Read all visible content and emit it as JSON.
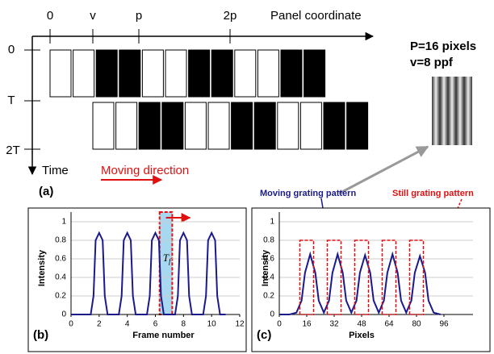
{
  "diagram": {
    "x_ticks": [
      "0",
      "v",
      "p",
      "2p"
    ],
    "x_axis_label": "Panel coordinate",
    "y_ticks": [
      "0",
      "T",
      "2T"
    ],
    "y_axis_label": "Time",
    "direction_label": "Moving direction",
    "panel_label": "(a)",
    "params": [
      "P=16 pixels",
      "v=8 ppf"
    ]
  },
  "chart_data": [
    {
      "type": "line",
      "label": "(b)",
      "xlabel": "Frame number",
      "ylabel": "Intensity",
      "xlim": [
        0,
        12
      ],
      "xticks": [
        0,
        2,
        4,
        6,
        8,
        10,
        12
      ],
      "ylim": [
        0,
        1
      ],
      "yticks": [
        0,
        0.2,
        0.4,
        0.6,
        0.8,
        1
      ],
      "grid": true,
      "highlight_x": [
        6.3,
        7.2
      ],
      "annotation": {
        "text": "T",
        "sub": "f"
      },
      "series": [
        {
          "color": "#1a1a8c",
          "x": [
            0,
            1.4,
            1.6,
            1.75,
            2,
            2.25,
            2.4,
            2.6,
            3.4,
            3.6,
            3.75,
            4,
            4.25,
            4.4,
            4.6,
            5.4,
            5.6,
            5.75,
            6,
            6.25,
            6.4,
            6.6,
            7.4,
            7.6,
            7.75,
            8,
            8.25,
            8.4,
            8.6,
            9.4,
            9.6,
            9.75,
            10,
            10.25,
            10.4,
            10.6,
            11
          ],
          "values": [
            0,
            0,
            0.2,
            0.8,
            0.88,
            0.8,
            0.2,
            0,
            0,
            0.2,
            0.8,
            0.88,
            0.8,
            0.2,
            0,
            0,
            0.2,
            0.8,
            0.88,
            0.8,
            0.2,
            0,
            0,
            0.2,
            0.8,
            0.88,
            0.8,
            0.2,
            0,
            0,
            0.2,
            0.8,
            0.88,
            0.8,
            0.2,
            0,
            0
          ]
        }
      ]
    },
    {
      "type": "line",
      "label": "(c)",
      "xlabel": "Pixels",
      "ylabel": "Intensity",
      "xlim": [
        0,
        96
      ],
      "xticks": [
        0,
        16,
        32,
        48,
        64,
        80,
        96
      ],
      "ylim": [
        0,
        1
      ],
      "yticks": [
        0,
        0.2,
        0.4,
        0.6,
        0.8,
        1
      ],
      "grid": true,
      "series": [
        {
          "name": "Moving grating pattern",
          "color": "#1a1a8c",
          "x": [
            0,
            6,
            10,
            13,
            15,
            18,
            21,
            23,
            26,
            29,
            31,
            34,
            37,
            39,
            42,
            45,
            47,
            50,
            53,
            55,
            58,
            61,
            63,
            66,
            69,
            71,
            74,
            77,
            79,
            82,
            85,
            87,
            90,
            94
          ],
          "values": [
            0,
            0,
            0.02,
            0.15,
            0.45,
            0.65,
            0.45,
            0.15,
            0.02,
            0.15,
            0.45,
            0.65,
            0.45,
            0.15,
            0.02,
            0.15,
            0.45,
            0.64,
            0.45,
            0.15,
            0.02,
            0.15,
            0.45,
            0.65,
            0.45,
            0.15,
            0.02,
            0.15,
            0.45,
            0.63,
            0.45,
            0.15,
            0.02,
            0
          ]
        },
        {
          "name": "Still grating pattern",
          "color": "#e01010",
          "x": [
            [
              12,
              20
            ],
            [
              28,
              36
            ],
            [
              44,
              52
            ],
            [
              60,
              68
            ],
            [
              76,
              84
            ]
          ],
          "values": [
            0.8,
            0.8,
            0.8,
            0.8,
            0.8
          ]
        }
      ]
    }
  ]
}
